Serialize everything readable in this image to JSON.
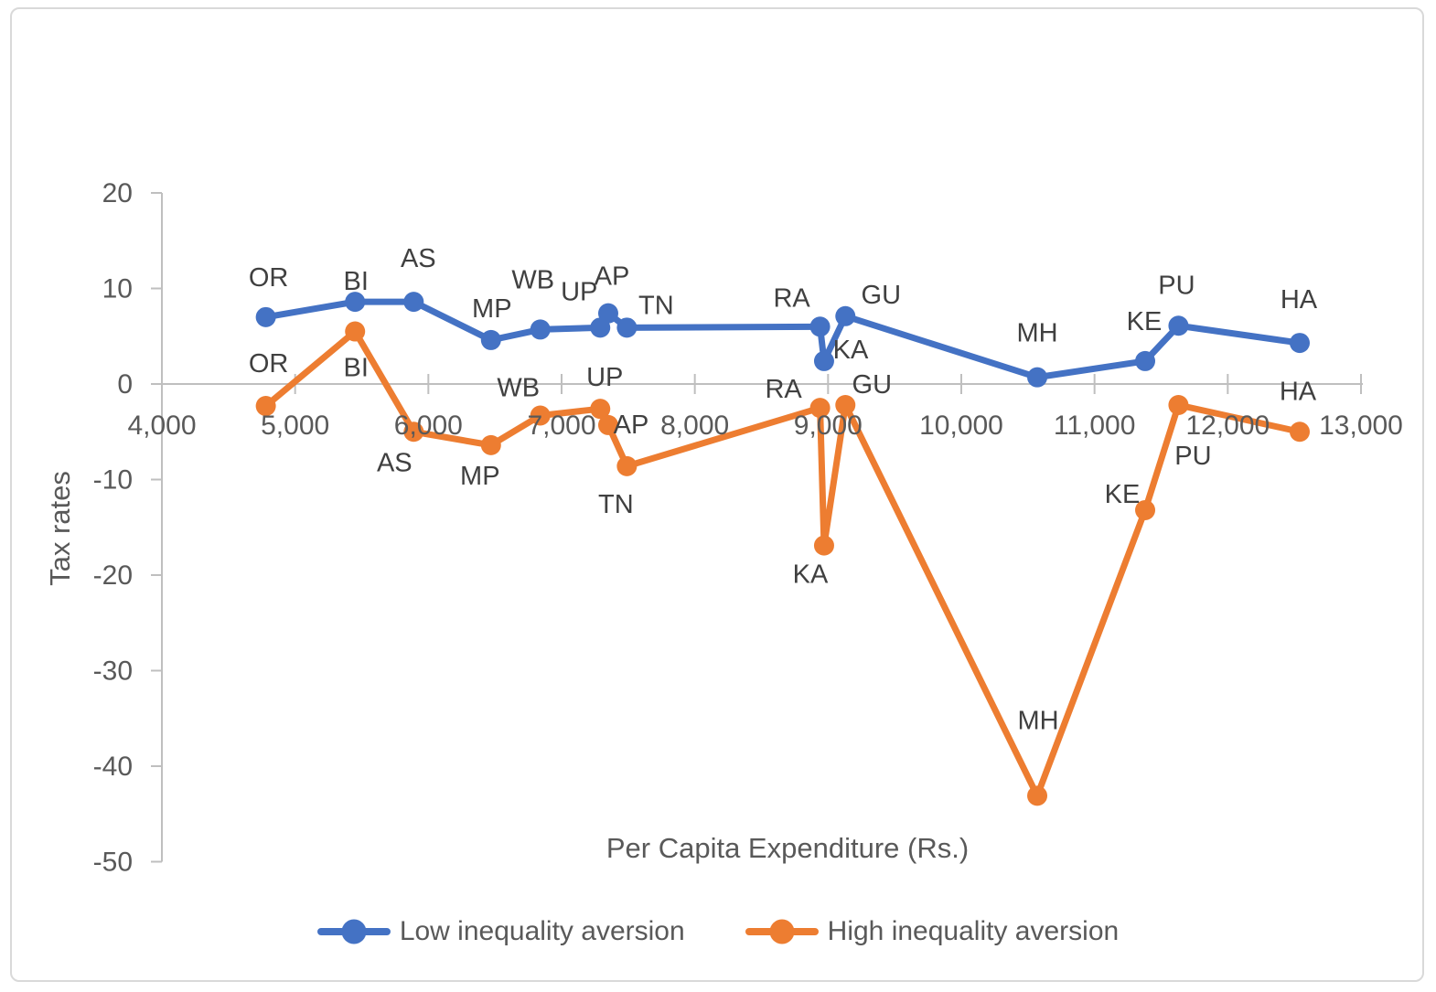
{
  "frame": {
    "background": "#FFFFFF",
    "border_color": "#D9D9D9"
  },
  "chart_data": {
    "type": "line",
    "title": "",
    "xlabel": "Per Capita Expenditure (Rs.)",
    "ylabel": "Tax rates",
    "xlim": [
      4000,
      13000
    ],
    "ylim": [
      -50,
      20
    ],
    "grid": false,
    "legend_position": "bottom",
    "axis_color": "#BFBFBF",
    "tick_label_color": "#595959",
    "data_label_color": "#404040",
    "axis_title_color": "#595959",
    "x_ticks": [
      {
        "value": 4000,
        "label": "4,000"
      },
      {
        "value": 5000,
        "label": "5,000"
      },
      {
        "value": 6000,
        "label": "6,000"
      },
      {
        "value": 7000,
        "label": "7,000"
      },
      {
        "value": 8000,
        "label": "8,000"
      },
      {
        "value": 9000,
        "label": "9,000"
      },
      {
        "value": 10000,
        "label": "10,000"
      },
      {
        "value": 11000,
        "label": "11,000"
      },
      {
        "value": 12000,
        "label": "12,000"
      },
      {
        "value": 13000,
        "label": "13,000"
      }
    ],
    "y_ticks": [
      {
        "value": 20,
        "label": "20"
      },
      {
        "value": 10,
        "label": "10"
      },
      {
        "value": 0,
        "label": "0"
      },
      {
        "value": -10,
        "label": "-10"
      },
      {
        "value": -20,
        "label": "-20"
      },
      {
        "value": -30,
        "label": "-30"
      },
      {
        "value": -40,
        "label": "-40"
      },
      {
        "value": -50,
        "label": "-50"
      }
    ],
    "series": [
      {
        "name": "Low inequality aversion",
        "color": "#4472C4",
        "points": [
          {
            "state": "OR",
            "x": 4780,
            "y": 7.0,
            "label_dx": 3,
            "label_dy": -44
          },
          {
            "state": "BI",
            "x": 5450,
            "y": 8.6,
            "label_dx": 1,
            "label_dy": -23
          },
          {
            "state": "AS",
            "x": 5890,
            "y": 8.6,
            "label_dx": 5,
            "label_dy": -48
          },
          {
            "state": "MP",
            "x": 6470,
            "y": 4.6,
            "label_dx": 1,
            "label_dy": -35
          },
          {
            "state": "WB",
            "x": 6840,
            "y": 5.7,
            "label_dx": -8,
            "label_dy": -55
          },
          {
            "state": "UP",
            "x": 7290,
            "y": 5.9,
            "label_dx": -23,
            "label_dy": -40
          },
          {
            "state": "AP",
            "x": 7350,
            "y": 7.4,
            "label_dx": 4,
            "label_dy": -41
          },
          {
            "state": "TN",
            "x": 7490,
            "y": 5.9,
            "label_dx": 32,
            "label_dy": -25
          },
          {
            "state": "RA",
            "x": 8940,
            "y": 6.0,
            "label_dx": -31,
            "label_dy": -32
          },
          {
            "state": "KA",
            "x": 8970,
            "y": 2.4,
            "label_dx": 29,
            "label_dy": -13
          },
          {
            "state": "GU",
            "x": 9130,
            "y": 7.1,
            "label_dx": 39,
            "label_dy": -24
          },
          {
            "state": "MH",
            "x": 10570,
            "y": 0.7,
            "label_dx": 0,
            "label_dy": -49
          },
          {
            "state": "KE",
            "x": 11380,
            "y": 2.4,
            "label_dx": -1,
            "label_dy": -44
          },
          {
            "state": "PU",
            "x": 11630,
            "y": 6.1,
            "label_dx": -2,
            "label_dy": -45
          },
          {
            "state": "HA",
            "x": 12540,
            "y": 4.3,
            "label_dx": -1,
            "label_dy": -48
          }
        ]
      },
      {
        "name": "High inequality aversion",
        "color": "#ED7D31",
        "points": [
          {
            "state": "OR",
            "x": 4780,
            "y": -2.3,
            "label_dx": 3,
            "label_dy": -47
          },
          {
            "state": "BI",
            "x": 5450,
            "y": 5.5,
            "label_dx": 1,
            "label_dy": 39
          },
          {
            "state": "AS",
            "x": 5890,
            "y": -5.0,
            "label_dx": -21,
            "label_dy": 33
          },
          {
            "state": "MP",
            "x": 6470,
            "y": -6.4,
            "label_dx": -12,
            "label_dy": 33
          },
          {
            "state": "WB",
            "x": 6840,
            "y": -3.3,
            "label_dx": -24,
            "label_dy": -31
          },
          {
            "state": "UP",
            "x": 7290,
            "y": -2.6,
            "label_dx": 5,
            "label_dy": -35
          },
          {
            "state": "AP",
            "x": 7350,
            "y": -4.3,
            "label_dx": 25,
            "label_dy": -1
          },
          {
            "state": "TN",
            "x": 7490,
            "y": -8.6,
            "label_dx": -12,
            "label_dy": 41
          },
          {
            "state": "RA",
            "x": 8940,
            "y": -2.5,
            "label_dx": -40,
            "label_dy": -21
          },
          {
            "state": "KA",
            "x": 8970,
            "y": -16.9,
            "label_dx": -15,
            "label_dy": 31
          },
          {
            "state": "GU",
            "x": 9130,
            "y": -2.2,
            "label_dx": 29,
            "label_dy": -23
          },
          {
            "state": "MH",
            "x": 10570,
            "y": -43.1,
            "label_dx": 1,
            "label_dy": -83
          },
          {
            "state": "KE",
            "x": 11380,
            "y": -13.2,
            "label_dx": -25,
            "label_dy": -18
          },
          {
            "state": "PU",
            "x": 11630,
            "y": -2.2,
            "label_dx": 16,
            "label_dy": 55
          },
          {
            "state": "HA",
            "x": 12540,
            "y": -5.0,
            "label_dx": -2,
            "label_dy": -45
          }
        ]
      }
    ]
  }
}
